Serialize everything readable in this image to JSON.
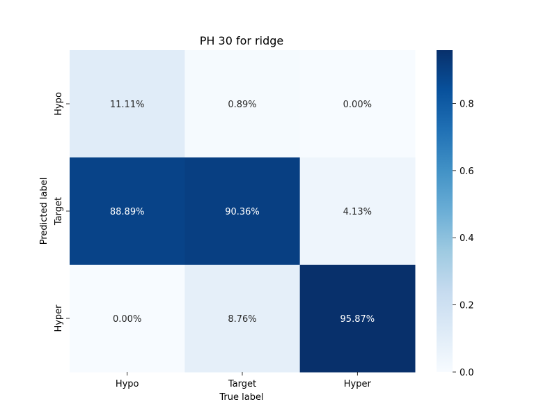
{
  "chart_data": {
    "type": "heatmap",
    "title": "PH 30 for ridge",
    "xlabel": "True label",
    "ylabel": "Predicted label",
    "x_categories": [
      "Hypo",
      "Target",
      "Hyper"
    ],
    "y_categories": [
      "Hypo",
      "Target",
      "Hyper"
    ],
    "values": [
      [
        0.1111,
        0.0089,
        0.0
      ],
      [
        0.8889,
        0.9036,
        0.0413
      ],
      [
        0.0,
        0.0876,
        0.9587
      ]
    ],
    "annotations": [
      [
        "11.11%",
        "0.89%",
        "0.00%"
      ],
      [
        "88.89%",
        "90.36%",
        "4.13%"
      ],
      [
        "0.00%",
        "8.76%",
        "95.87%"
      ]
    ],
    "colorbar": {
      "min": 0,
      "max": 0.9587,
      "ticks": [
        0.0,
        0.2,
        0.4,
        0.6,
        0.8
      ],
      "tick_labels": [
        "0.0",
        "0.2",
        "0.4",
        "0.6",
        "0.8"
      ],
      "colormap": "Blues"
    }
  }
}
